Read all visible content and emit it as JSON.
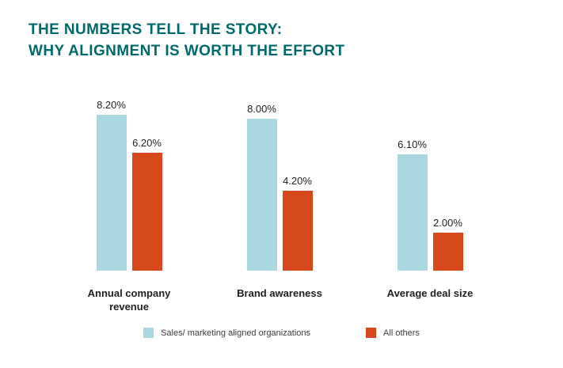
{
  "title": {
    "line1": "THE NUMBERS TELL THE STORY:",
    "line2": "WHY ALIGNMENT IS WORTH THE EFFORT"
  },
  "colors": {
    "title": "#00696b",
    "series_aligned": "#aad8e1",
    "series_all_others": "#d8481d",
    "background": "#ffffff"
  },
  "chart_data": {
    "type": "bar",
    "categories": [
      "Annual company revenue",
      "Brand awareness",
      "Average deal size"
    ],
    "series": [
      {
        "name": "Sales/ marketing aligned organizations",
        "values": [
          8.2,
          8.0,
          6.1
        ],
        "value_labels": [
          "8.20%",
          "8.00%",
          "6.10%"
        ],
        "color": "#aad8e1"
      },
      {
        "name": "All others",
        "values": [
          6.2,
          4.2,
          2.0
        ],
        "value_labels": [
          "6.20%",
          "4.20%",
          "2.00%"
        ],
        "color": "#d8481d"
      }
    ],
    "title": "THE NUMBERS TELL THE STORY: WHY ALIGNMENT IS WORTH THE EFFORT",
    "xlabel": "",
    "ylabel": "",
    "ylim": [
      0,
      8.2
    ],
    "grid": false,
    "axis_lines": false,
    "legend_position": "bottom"
  },
  "legend": {
    "items": [
      {
        "label": "Sales/ marketing aligned organizations",
        "color": "#aad8e1"
      },
      {
        "label": "All others",
        "color": "#d8481d"
      }
    ]
  }
}
